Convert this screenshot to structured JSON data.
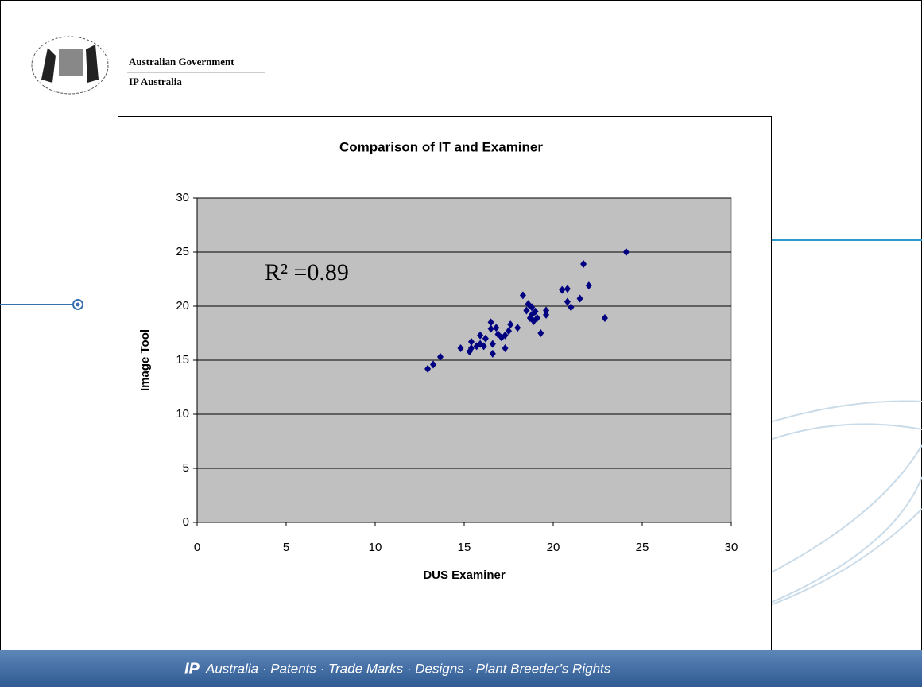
{
  "header": {
    "line1": "Australian Government",
    "line2": "IP Australia"
  },
  "chart_data": {
    "type": "scatter",
    "title": "Comparison of IT and Examiner",
    "x_label": "DUS Examiner",
    "y_label": "Image Tool",
    "annotation": "R² =0.89",
    "x": [
      12.95,
      13.26,
      13.66,
      14.8,
      15.4,
      15.4,
      15.3,
      15.7,
      15.9,
      15.9,
      16.2,
      16.1,
      16.5,
      16.6,
      16.6,
      16.5,
      16.8,
      16.9,
      17.1,
      17.3,
      17.3,
      17.5,
      17.6,
      18.0,
      18.3,
      18.5,
      18.6,
      18.7,
      18.8,
      18.8,
      18.9,
      19.0,
      19.1,
      19.3,
      19.6,
      19.6,
      20.5,
      20.8,
      20.8,
      21.0,
      21.5,
      21.7,
      22.0,
      22.9,
      24.1
    ],
    "values": [
      14.2,
      14.6,
      15.3,
      16.1,
      16.1,
      16.7,
      15.8,
      16.3,
      16.5,
      17.3,
      17.0,
      16.3,
      18.5,
      15.6,
      16.5,
      17.9,
      18.0,
      17.4,
      17.1,
      16.1,
      17.3,
      17.7,
      18.3,
      18.0,
      21.0,
      19.6,
      20.2,
      18.9,
      19.9,
      19.2,
      18.6,
      19.5,
      18.9,
      17.5,
      19.6,
      19.2,
      21.5,
      21.6,
      20.4,
      19.9,
      20.7,
      23.9,
      21.9,
      18.9,
      25.0
    ],
    "color": "#000080",
    "plot_background": "#c0c0c0",
    "xlim": [
      0,
      30
    ],
    "xticks": [
      0,
      5,
      10,
      15,
      20,
      25,
      30
    ],
    "ylim": [
      0,
      30
    ],
    "yticks": [
      0,
      5,
      10,
      15,
      20,
      25,
      30
    ],
    "grid": true
  },
  "footer": {
    "logo": "IP",
    "text": "Australia · Patents · Trade Marks · Designs · Plant Breeder’s Rights"
  }
}
